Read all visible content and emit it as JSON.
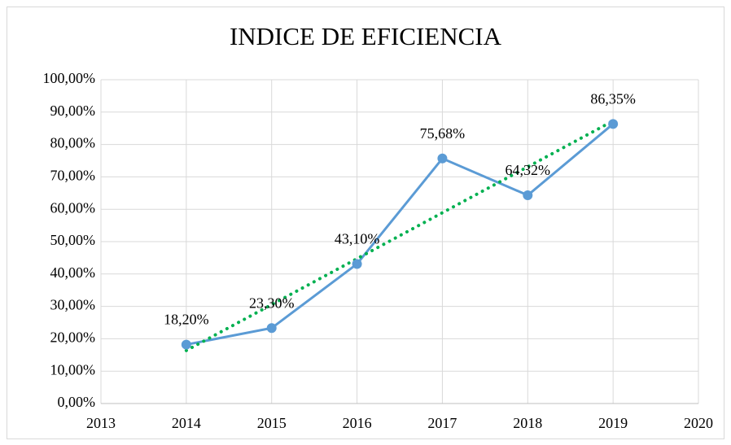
{
  "chart_data": {
    "type": "line",
    "title": "INDICE DE EFICIENCIA",
    "x": [
      2014,
      2015,
      2016,
      2017,
      2018,
      2019
    ],
    "series": [
      {
        "color": "#5b9bd5",
        "values": [
          18.2,
          23.3,
          43.1,
          75.68,
          64.32,
          86.35
        ],
        "value_labels": [
          "18,20%",
          "23,30%",
          "43,10%",
          "75,68%",
          "64,32%",
          "86,35%"
        ]
      }
    ],
    "trendline": {
      "x": [
        2014,
        2019
      ],
      "values": [
        16.37,
        87.28
      ],
      "color": "#00b050",
      "style": "dotted"
    },
    "xlim": [
      2013,
      2020
    ],
    "xticks": [
      2013,
      2014,
      2015,
      2016,
      2017,
      2018,
      2019,
      2020
    ],
    "ylim": [
      0,
      100
    ],
    "yticks": [
      {
        "value": 0,
        "label": "0,00%"
      },
      {
        "value": 10,
        "label": "10,00%"
      },
      {
        "value": 20,
        "label": "20,00%"
      },
      {
        "value": 30,
        "label": "30,00%"
      },
      {
        "value": 40,
        "label": "40,00%"
      },
      {
        "value": 50,
        "label": "50,00%"
      },
      {
        "value": 60,
        "label": "60,00%"
      },
      {
        "value": 70,
        "label": "70,00%"
      },
      {
        "value": 80,
        "label": "80,00%"
      },
      {
        "value": 90,
        "label": "90,00%"
      },
      {
        "value": 100,
        "label": "100,00%"
      }
    ],
    "grid": true
  }
}
